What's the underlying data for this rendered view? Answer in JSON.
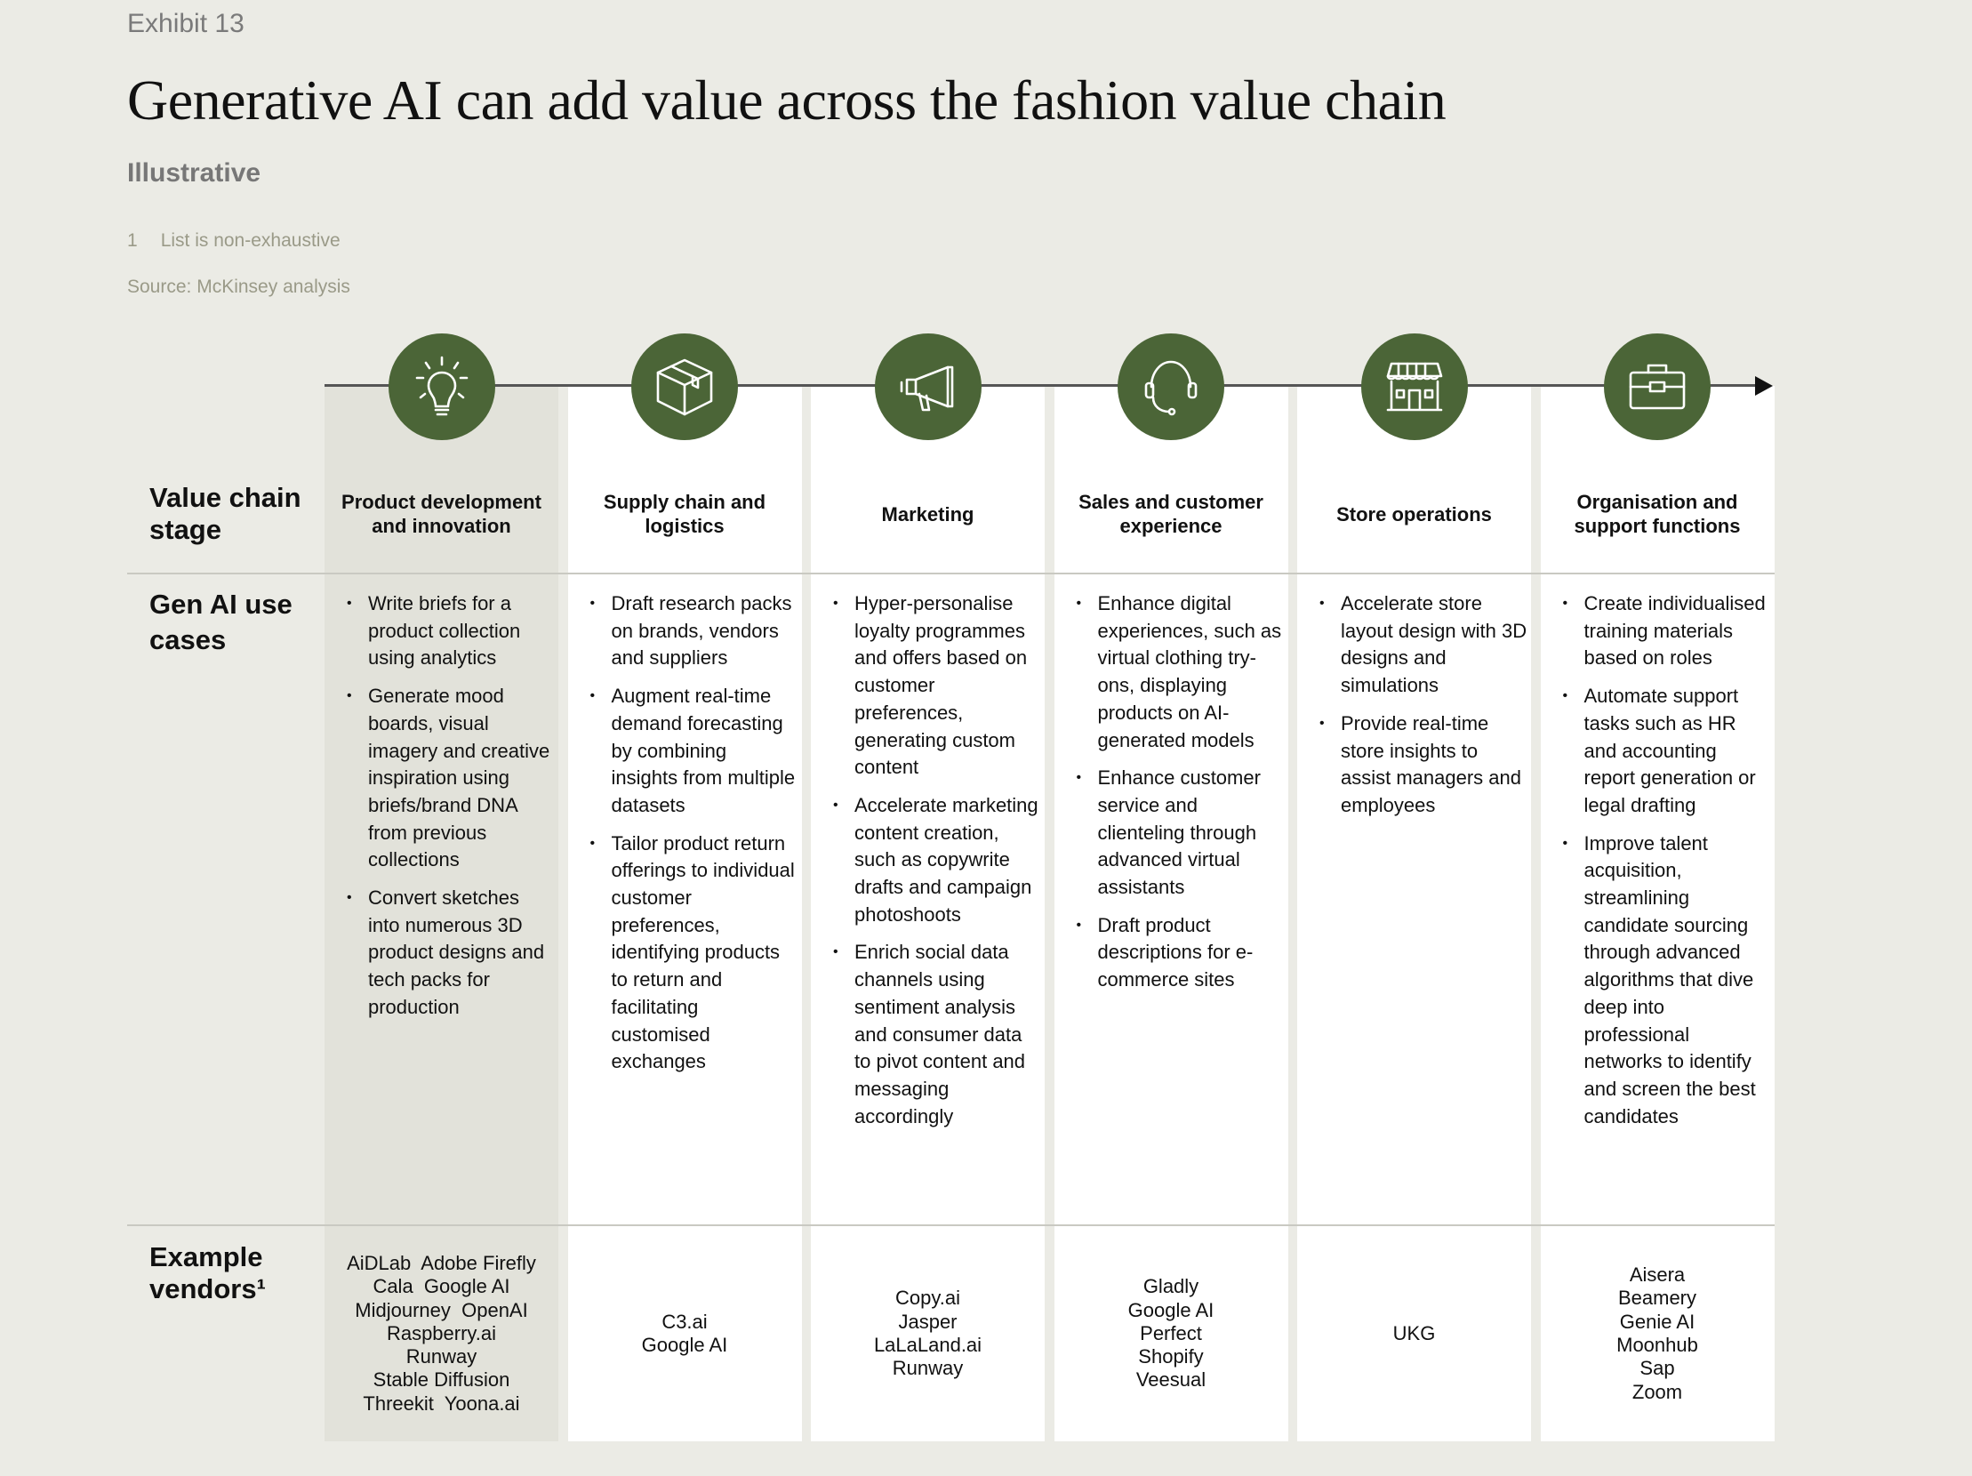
{
  "exhibit": "Exhibit 13",
  "title": "Generative AI can add value across the fashion value chain",
  "subtitle": "Illustrative",
  "footnote": {
    "number": "1",
    "text": "List is non-exhaustive"
  },
  "source": "Source: McKinsey analysis",
  "colors": {
    "accent": "#4b6537",
    "highlight_column": "#e2e2da",
    "background": "#ebebe5"
  },
  "row_labels": {
    "stage": "Value chain stage",
    "use_cases": "Gen AI use cases",
    "vendors": "Example vendors¹"
  },
  "stages": [
    {
      "icon": "lightbulb-icon",
      "name": "Product development and innovation",
      "use_cases": [
        "Write briefs for a product collection using analytics",
        "Generate mood boards, visual imagery and creative inspiration using briefs/brand DNA from previous collections",
        "Convert sketches into numerous 3D product designs and tech packs for production"
      ],
      "vendors": [
        "AiDLab  Adobe Firefly",
        "Cala  Google AI",
        "Midjourney  OpenAI",
        "Raspberry.ai",
        "Runway",
        "Stable Diffusion",
        "Threekit  Yoona.ai"
      ]
    },
    {
      "icon": "box-icon",
      "name": "Supply chain and logistics",
      "use_cases": [
        "Draft research packs on brands, vendors and suppliers",
        "Augment real-time demand forecasting by combining insights from multiple datasets",
        "Tailor product return offerings to individual customer preferences, identifying products to return and facilitating customised exchanges"
      ],
      "vendors": [
        "C3.ai",
        "Google AI"
      ]
    },
    {
      "icon": "megaphone-icon",
      "name": "Marketing",
      "use_cases": [
        "Hyper-personalise loyalty programmes and offers based on customer preferences, generating custom content",
        "Accelerate marketing content creation, such as copywrite drafts and campaign photoshoots",
        "Enrich social data channels using sentiment analysis and consumer data to pivot content and messaging accordingly"
      ],
      "vendors": [
        "Copy.ai",
        "Jasper",
        "LaLaLand.ai",
        "Runway"
      ]
    },
    {
      "icon": "headset-icon",
      "name": "Sales and customer experience",
      "use_cases": [
        "Enhance digital experiences, such as virtual clothing try-ons, displaying products on AI-generated models",
        "Enhance customer service and clienteling through advanced virtual assistants",
        "Draft product descriptions for e-commerce sites"
      ],
      "vendors": [
        "Gladly",
        "Google AI",
        "Perfect",
        "Shopify",
        "Veesual"
      ]
    },
    {
      "icon": "storefront-icon",
      "name": "Store operations",
      "use_cases": [
        "Accelerate store layout design with 3D designs and simulations",
        "Provide real-time store insights to assist managers and employees"
      ],
      "vendors": [
        "UKG"
      ]
    },
    {
      "icon": "briefcase-icon",
      "name": "Organisation and support functions",
      "use_cases": [
        "Create individualised training materials based on roles",
        "Automate support tasks such as HR and accounting report generation or legal drafting",
        "Improve talent acquisition, streamlining candidate sourcing through advanced algorithms that dive deep into professional networks to identify and screen the best candidates"
      ],
      "vendors": [
        "Aisera",
        "Beamery",
        "Genie AI",
        "Moonhub",
        "Sap",
        "Zoom"
      ]
    }
  ]
}
